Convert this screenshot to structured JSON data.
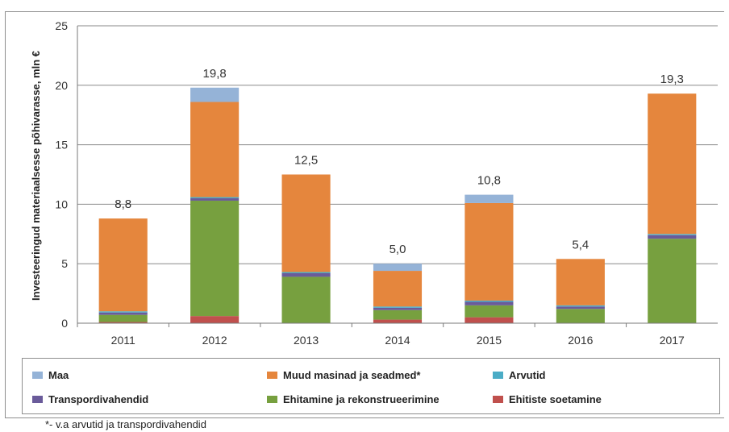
{
  "chart_data": {
    "type": "bar",
    "stacked": true,
    "ylabel": "Investeeringud materiaalsesse põhivarasse, mln €",
    "ylim": [
      0,
      25
    ],
    "yticks": [
      0,
      5,
      10,
      15,
      20,
      25
    ],
    "grid": true,
    "legend_position": "bottom",
    "categories": [
      "2011",
      "2012",
      "2013",
      "2014",
      "2015",
      "2016",
      "2017"
    ],
    "totals_labels": [
      "8,8",
      "19,8",
      "12,5",
      "5,0",
      "10,8",
      "5,4",
      "19,3"
    ],
    "series": [
      {
        "name": "Ehitiste soetamine",
        "color": "#c0504d",
        "values": [
          0.1,
          0.6,
          0.0,
          0.3,
          0.5,
          0.0,
          0.0
        ]
      },
      {
        "name": "Ehitamine ja rekonstrueerimine",
        "color": "#77a03f",
        "values": [
          0.6,
          9.7,
          3.9,
          0.8,
          1.0,
          1.2,
          7.1
        ]
      },
      {
        "name": "Transpordivahendid",
        "color": "#6a5b9a",
        "values": [
          0.2,
          0.2,
          0.3,
          0.2,
          0.3,
          0.2,
          0.3
        ]
      },
      {
        "name": "Arvutid",
        "color": "#4bacc6",
        "values": [
          0.1,
          0.1,
          0.1,
          0.1,
          0.1,
          0.1,
          0.1
        ]
      },
      {
        "name": "Muud masinad ja seadmed*",
        "color": "#e5863d",
        "values": [
          7.8,
          8.0,
          8.2,
          3.0,
          8.2,
          3.9,
          11.8
        ]
      },
      {
        "name": "Maa",
        "color": "#95b3d7",
        "values": [
          0.0,
          1.2,
          0.0,
          0.6,
          0.7,
          0.0,
          0.0
        ]
      }
    ]
  },
  "legend": [
    {
      "label": "Maa",
      "color": "#95b3d7"
    },
    {
      "label": "Muud masinad ja seadmed*",
      "color": "#e5863d"
    },
    {
      "label": "Arvutid",
      "color": "#4bacc6"
    },
    {
      "label": "Transpordivahendid",
      "color": "#6a5b9a"
    },
    {
      "label": "Ehitamine ja rekonstrueerimine",
      "color": "#77a03f"
    },
    {
      "label": "Ehitiste soetamine",
      "color": "#c0504d"
    }
  ],
  "footnote": "*- v.a arvutid ja transpordivahendid"
}
